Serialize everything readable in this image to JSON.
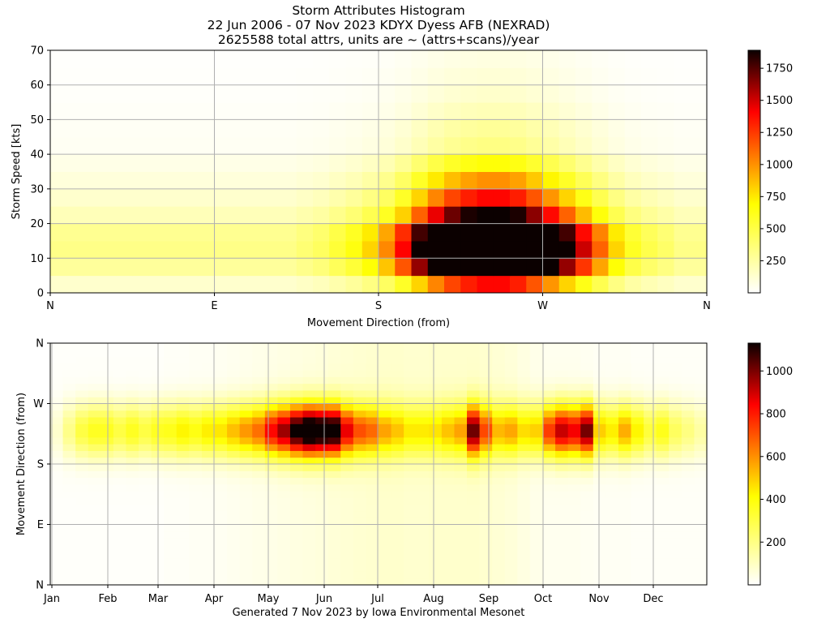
{
  "chart_data": [
    {
      "type": "heatmap",
      "title": [
        "Storm Attributes Histogram",
        "22 Jun 2006 - 07 Nov 2023 KDYX Dyess AFB (NEXRAD)",
        "2625588 total attrs, units are ~ (attrs+scans)/year"
      ],
      "xlabel": "Movement Direction (from)",
      "ylabel": "Storm Speed [kts]",
      "x_ticks": [
        "N",
        "E",
        "S",
        "W",
        "N"
      ],
      "y_ticks": [
        "0",
        "10",
        "20",
        "30",
        "40",
        "50",
        "60",
        "70"
      ],
      "ylim": [
        0,
        70
      ],
      "x_bins_deg": 10,
      "y_bins_kts": 5,
      "colorbar_ticks": [
        "250",
        "500",
        "750",
        "1000",
        "1250",
        "1500",
        "1750"
      ],
      "colorbar_range": [
        0,
        1890
      ],
      "colormap": "hot_r",
      "grid": true,
      "speed_profile": [
        0.25,
        0.5,
        0.6,
        0.55,
        0.35,
        0.25,
        0.18,
        0.12,
        0.06,
        0.05,
        0.035,
        0.025,
        0.02,
        0.015
      ],
      "direction_profile": [
        0.3,
        0.3,
        0.3,
        0.3,
        0.3,
        0.3,
        0.3,
        0.3,
        0.3,
        0.3,
        0.3,
        0.3,
        0.3,
        0.3,
        0.3,
        0.35,
        0.4,
        0.5,
        0.6,
        0.75,
        0.95,
        1.3,
        1.8,
        2.3,
        2.7,
        2.95,
        3.1,
        3.1,
        2.95,
        2.6,
        2.2,
        1.8,
        1.4,
        1.05,
        0.75,
        0.55,
        0.45,
        0.38,
        0.3,
        0.3
      ],
      "peak": {
        "direction_deg": 225,
        "speed_kts": 20,
        "value": 1870
      }
    },
    {
      "type": "heatmap",
      "xlabel": "",
      "ylabel": "Movement Direction (from)",
      "x_ticks": [
        "Jan",
        "Feb",
        "Mar",
        "Apr",
        "May",
        "Jun",
        "Jul",
        "Aug",
        "Sep",
        "Oct",
        "Nov",
        "Dec"
      ],
      "y_ticks": [
        "N",
        "S",
        "W",
        "E",
        "N"
      ],
      "y_tick_order_bottom_to_top": [
        "N",
        "E",
        "S",
        "W",
        "N"
      ],
      "x_bins": "week",
      "y_bins_deg": 10,
      "colorbar_ticks": [
        "200",
        "400",
        "600",
        "800",
        "1000"
      ],
      "colorbar_range": [
        0,
        1130
      ],
      "colormap": "hot_r",
      "grid": true,
      "week_intensity": [
        0.05,
        0.15,
        0.25,
        0.3,
        0.3,
        0.25,
        0.3,
        0.25,
        0.3,
        0.3,
        0.35,
        0.3,
        0.35,
        0.35,
        0.4,
        0.45,
        0.5,
        0.65,
        0.75,
        0.9,
        1.0,
        0.95,
        0.9,
        0.6,
        0.45,
        0.4,
        0.3,
        0.25,
        0.2,
        0.2,
        0.2,
        0.25,
        0.3,
        0.7,
        0.45,
        0.3,
        0.35,
        0.3,
        0.35,
        0.6,
        0.75,
        0.7,
        0.85,
        0.4,
        0.35,
        0.45,
        0.35,
        0.25,
        0.3,
        0.2,
        0.15,
        0.1
      ],
      "week_spread": [
        0.1,
        0.1,
        0.1,
        0.1,
        0.1,
        0.1,
        0.1,
        0.1,
        0.1,
        0.15,
        0.15,
        0.2,
        0.2,
        0.25,
        0.3,
        0.35,
        0.4,
        0.45,
        0.5,
        0.55,
        0.6,
        0.65,
        0.75,
        0.8,
        0.85,
        0.9,
        0.95,
        0.95,
        0.9,
        0.9,
        0.95,
        0.95,
        0.95,
        0.95,
        0.9,
        0.8,
        0.7,
        0.55,
        0.4,
        0.3,
        0.3,
        0.3,
        0.25,
        0.2,
        0.2,
        0.2,
        0.15,
        0.15,
        0.15,
        0.15,
        0.15,
        0.15
      ],
      "peak": {
        "month": "May",
        "direction_deg": 230,
        "value": 1100
      }
    }
  ],
  "footer": "Generated 7 Nov 2023 by Iowa Environmental Mesonet"
}
